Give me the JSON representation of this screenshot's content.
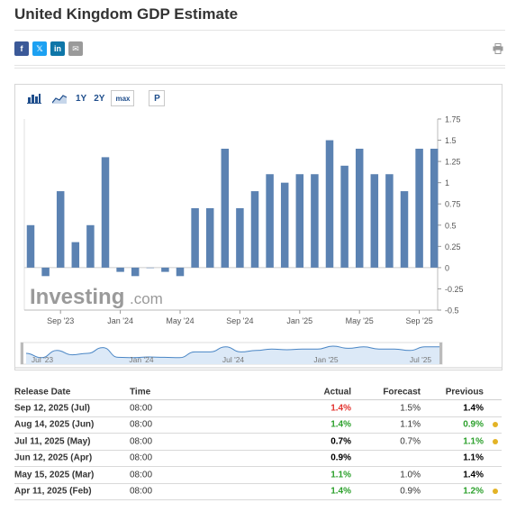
{
  "page_title": "United Kingdom GDP Estimate",
  "share_icons": [
    "facebook-icon",
    "twitter-icon",
    "linkedin-icon",
    "email-icon"
  ],
  "share_glyphs": [
    "f",
    "𝕏",
    "in",
    "✉"
  ],
  "toolbar": {
    "bar_icon": "bar-chart-icon",
    "area_icon": "area-chart-icon",
    "range_1y": "1Y",
    "range_2y": "2Y",
    "range_max": "max",
    "p_label": "P"
  },
  "colors": {
    "bar": "#5b82b2",
    "navigator_fill": "#dce9f7",
    "navigator_line": "#4a86c5",
    "red": "#e3342f",
    "green": "#2ca02c",
    "dot": "#e3b326"
  },
  "chart_data": {
    "type": "bar",
    "x_tick_labels": [
      "Sep '23",
      "Jan '24",
      "May '24",
      "Sep '24",
      "Jan '25",
      "May '25",
      "Sep '25"
    ],
    "y_ticks": [
      "1.75",
      "1.5",
      "1.25",
      "1",
      "0.75",
      "0.5",
      "0.25",
      "0",
      "-0.25",
      "-0.5"
    ],
    "y_tick_values": [
      1.75,
      1.5,
      1.25,
      1,
      0.75,
      0.5,
      0.25,
      0,
      -0.25,
      -0.5
    ],
    "ylim": [
      -0.5,
      1.75
    ],
    "values": [
      0.5,
      -0.1,
      0.9,
      0.3,
      0.5,
      1.3,
      -0.05,
      -0.1,
      0.0,
      -0.05,
      -0.1,
      0.7,
      0.7,
      1.4,
      0.7,
      0.9,
      1.1,
      1.0,
      1.1,
      1.1,
      1.5,
      1.2,
      1.4,
      1.1,
      1.1,
      0.9,
      1.4,
      1.4
    ],
    "navigator_labels": [
      "Jul '23",
      "Jan '24",
      "Jul '24",
      "Jan '25",
      "Jul '25"
    ],
    "watermark": "Investing",
    "watermark_suffix": ".com"
  },
  "table": {
    "headers": {
      "date": "Release Date",
      "time": "Time",
      "actual": "Actual",
      "forecast": "Forecast",
      "previous": "Previous"
    },
    "rows": [
      {
        "date": "Sep 12, 2025 (Jul)",
        "time": "08:00",
        "actual": "1.4%",
        "actual_color": "red",
        "forecast": "1.5%",
        "previous": "1.4%",
        "previous_color": "black",
        "dot": false
      },
      {
        "date": "Aug 14, 2025 (Jun)",
        "time": "08:00",
        "actual": "1.4%",
        "actual_color": "green",
        "forecast": "1.1%",
        "previous": "0.9%",
        "previous_color": "green",
        "dot": true
      },
      {
        "date": "Jul 11, 2025 (May)",
        "time": "08:00",
        "actual": "0.7%",
        "actual_color": "black",
        "forecast": "0.7%",
        "previous": "1.1%",
        "previous_color": "green",
        "dot": true
      },
      {
        "date": "Jun 12, 2025 (Apr)",
        "time": "08:00",
        "actual": "0.9%",
        "actual_color": "black",
        "forecast": "",
        "previous": "1.1%",
        "previous_color": "black",
        "dot": false
      },
      {
        "date": "May 15, 2025 (Mar)",
        "time": "08:00",
        "actual": "1.1%",
        "actual_color": "green",
        "forecast": "1.0%",
        "previous": "1.4%",
        "previous_color": "black",
        "dot": false
      },
      {
        "date": "Apr 11, 2025 (Feb)",
        "time": "08:00",
        "actual": "1.4%",
        "actual_color": "green",
        "forecast": "0.9%",
        "previous": "1.2%",
        "previous_color": "green",
        "dot": true
      }
    ]
  }
}
